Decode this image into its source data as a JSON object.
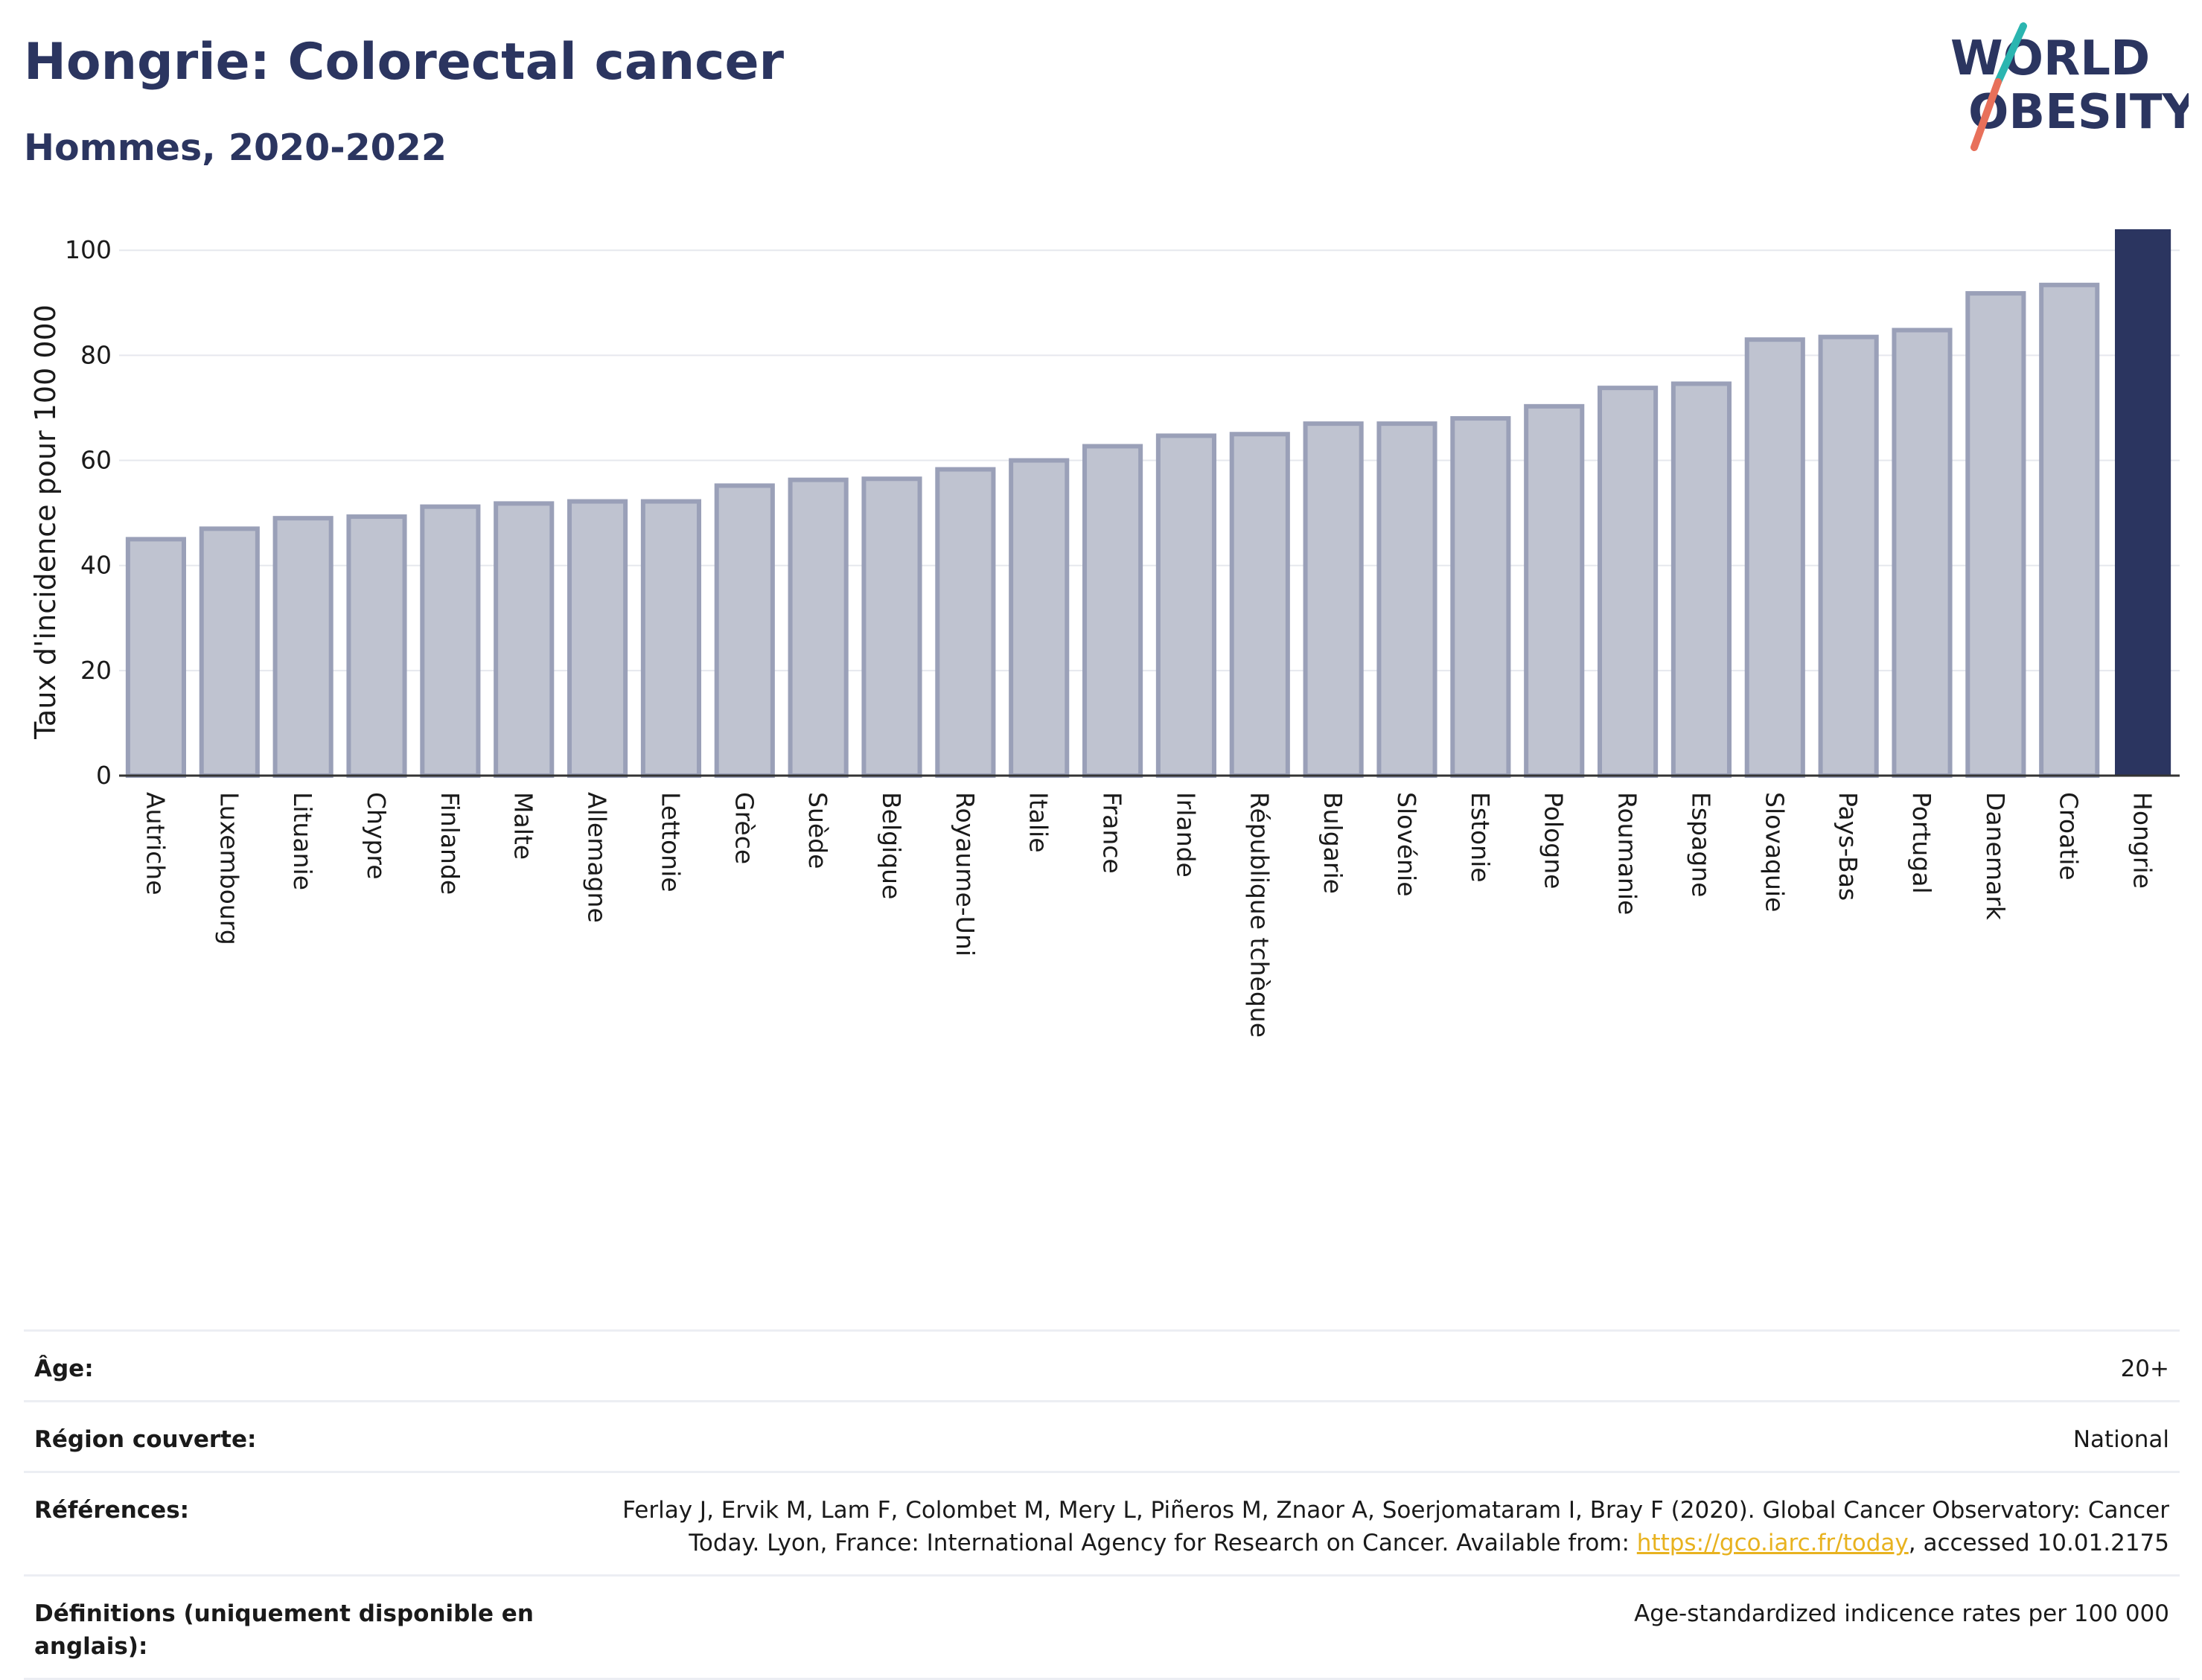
{
  "header": {
    "title": "Hongrie: Colorectal cancer",
    "subtitle": "Hommes, 2020-2022"
  },
  "logo": {
    "line1": "WORLD",
    "line2": "OBESITY",
    "colors": {
      "text": "#2b3560",
      "slash_top": "#2bb5b0",
      "slash_bottom": "#e8705a"
    }
  },
  "colors": {
    "bar_fill": "#bfc3d0",
    "bar_stroke": "#9aa0b8",
    "highlight": "#2b3560",
    "grid": "#e6e8ee",
    "axis": "#333333"
  },
  "chart_data": {
    "type": "bar",
    "ylabel": "Taux d'incidence pour 100 000",
    "ylim": [
      0,
      104
    ],
    "yticks": [
      0,
      20,
      40,
      60,
      80,
      100
    ],
    "grid": true,
    "highlight_category": "Hongrie",
    "categories": [
      "Autriche",
      "Luxembourg",
      "Lituanie",
      "Chypre",
      "Finlande",
      "Malte",
      "Allemagne",
      "Lettonie",
      "Grèce",
      "Suède",
      "Belgique",
      "Royaume-Uni",
      "Italie",
      "France",
      "Irlande",
      "République tchèque",
      "Bulgarie",
      "Slovénie",
      "Estonie",
      "Pologne",
      "Roumanie",
      "Espagne",
      "Slovaquie",
      "Pays-Bas",
      "Portugal",
      "Danemark",
      "Croatie",
      "Hongrie"
    ],
    "values": [
      45.0,
      47.0,
      49.0,
      49.3,
      51.2,
      51.8,
      52.2,
      52.2,
      55.2,
      56.3,
      56.5,
      58.3,
      60.0,
      62.7,
      64.7,
      65.0,
      67.0,
      67.0,
      68.0,
      70.3,
      73.8,
      74.6,
      83.0,
      83.5,
      84.8,
      91.8,
      93.4,
      104.0
    ]
  },
  "info": {
    "rows": [
      {
        "label": "Âge:",
        "value": "20+"
      },
      {
        "label": "Région couverte:",
        "value": "National"
      },
      {
        "label": "Références:",
        "value_pre": "Ferlay J, Ervik M, Lam F, Colombet M, Mery L, Piñeros M, Znaor A, Soerjomataram I, Bray F (2020). Global Cancer Observatory: Cancer Today. Lyon, France: International Agency for Research on Cancer. Available from: ",
        "link": "https://gco.iarc.fr/today",
        "value_post": ", accessed 10.01.2175"
      },
      {
        "label": "Définitions (uniquement disponible en anglais):",
        "value": "Age-standardized indicence rates per 100 000"
      }
    ]
  }
}
